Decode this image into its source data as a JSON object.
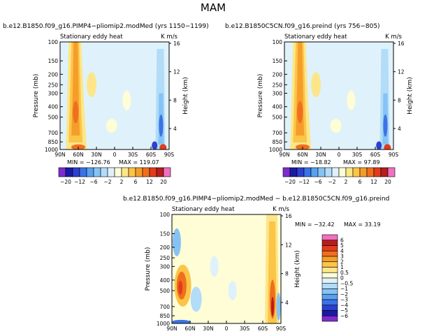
{
  "page_title": "MAM",
  "chart_data": [
    {
      "type": "heatmap",
      "title": "b.e12.B1850.f09_g16.PIMP4−pliomip2.modMed (yrs 1150−1199)",
      "subtitle_left": "Stationary eddy heat",
      "subtitle_right": "K m/s",
      "xlabel": "",
      "ylabel": "Pressure (mb)",
      "ylabel_right": "Height (km)",
      "x_ticks": [
        "90N",
        "60N",
        "30N",
        "0",
        "30S",
        "60S",
        "90S"
      ],
      "x_range": [
        90,
        -90
      ],
      "y_ticks": [
        100,
        150,
        200,
        250,
        300,
        400,
        500,
        700,
        850,
        1000
      ],
      "y_range": [
        100,
        1000
      ],
      "height_ticks": [
        16,
        12,
        8,
        4
      ],
      "min_label": "MIN = −126.76",
      "max_label": "MAX = 119.07",
      "min": -126.76,
      "max": 119.07,
      "features": [
        {
          "lat": 62,
          "p": 150,
          "value": 8
        },
        {
          "lat": 60,
          "p": 500,
          "value": 10
        },
        {
          "lat": 45,
          "p": 400,
          "value": 3
        },
        {
          "lat": -72,
          "p": 700,
          "value": -10
        },
        {
          "lat": -80,
          "p": 950,
          "value": 18
        }
      ]
    },
    {
      "type": "heatmap",
      "title": "b.e12.B1850C5CN.f09_g16.preind (yrs 756−805)",
      "subtitle_left": "Stationary eddy heat",
      "subtitle_right": "K m/s",
      "xlabel": "",
      "ylabel": "Pressure (mb)",
      "ylabel_right": "Height (km)",
      "x_ticks": [
        "90N",
        "60N",
        "30N",
        "0",
        "30S",
        "60S",
        "90S"
      ],
      "x_range": [
        90,
        -90
      ],
      "y_ticks": [
        100,
        150,
        200,
        250,
        300,
        400,
        500,
        700,
        850,
        1000
      ],
      "y_range": [
        100,
        1000
      ],
      "height_ticks": [
        16,
        12,
        8,
        4
      ],
      "min_label": "MIN = −18.82",
      "max_label": "MAX = 97.89",
      "min": -18.82,
      "max": 97.89,
      "features": [
        {
          "lat": 62,
          "p": 150,
          "value": 7
        },
        {
          "lat": 60,
          "p": 500,
          "value": 9
        },
        {
          "lat": 45,
          "p": 400,
          "value": 3
        },
        {
          "lat": -75,
          "p": 600,
          "value": -6
        },
        {
          "lat": -80,
          "p": 950,
          "value": 14
        }
      ]
    },
    {
      "type": "heatmap",
      "title": "b.e12.B1850.f09_g16.PIMP4−pliomip2.modMed − b.e12.B1850C5CN.f09_g16.preind",
      "subtitle_left": "Stationary eddy heat",
      "subtitle_right": "K m/s",
      "xlabel": "",
      "ylabel": "Pressure (mb)",
      "ylabel_right": "Height (km)",
      "x_ticks": [
        "90N",
        "60N",
        "30N",
        "0",
        "30S",
        "60S",
        "90S"
      ],
      "x_range": [
        90,
        -90
      ],
      "y_ticks": [
        100,
        150,
        200,
        250,
        300,
        400,
        500,
        700,
        850,
        1000
      ],
      "y_range": [
        100,
        1000
      ],
      "height_ticks": [
        16,
        12,
        8,
        4
      ],
      "min_label": "MIN = −32.42",
      "max_label": "MAX =  33.19",
      "min": -32.42,
      "max": 33.19,
      "features": [
        {
          "lat": 72,
          "p": 450,
          "value": 2
        },
        {
          "lat": 80,
          "p": 200,
          "value": -1
        },
        {
          "lat": 50,
          "p": 600,
          "value": -0.5
        },
        {
          "lat": -72,
          "p": 200,
          "value": 1.5
        },
        {
          "lat": -78,
          "p": 600,
          "value": 5
        }
      ]
    }
  ],
  "colorbar_top": {
    "labels": [
      "−20",
      "−12",
      "−6",
      "−2",
      "2",
      "6",
      "12",
      "20"
    ],
    "colors": [
      "#7d2cd0",
      "#1a1aa6",
      "#2b3fd1",
      "#3a73e6",
      "#5aa0f0",
      "#86c3f5",
      "#b3dcf8",
      "#dff2fb",
      "#fefdd6",
      "#fde68a",
      "#fbc548",
      "#f59d2a",
      "#ef6f1e",
      "#e23b1c",
      "#b81c1c",
      "#f071c0"
    ]
  },
  "colorbar_diff": {
    "labels": [
      "6",
      "5",
      "4",
      "3",
      "2",
      "1",
      "0.5",
      "0",
      "−0.5",
      "−1",
      "−2",
      "−3",
      "−4",
      "−5",
      "−6"
    ],
    "colors": [
      "#f071c0",
      "#b81c1c",
      "#e23b1c",
      "#ef6f1e",
      "#f59d2a",
      "#fbc548",
      "#fde68a",
      "#fefdd6",
      "#dff2fb",
      "#b3dcf8",
      "#86c3f5",
      "#5aa0f0",
      "#3a73e6",
      "#2b3fd1",
      "#1a1aa6",
      "#7d2cd0"
    ]
  }
}
